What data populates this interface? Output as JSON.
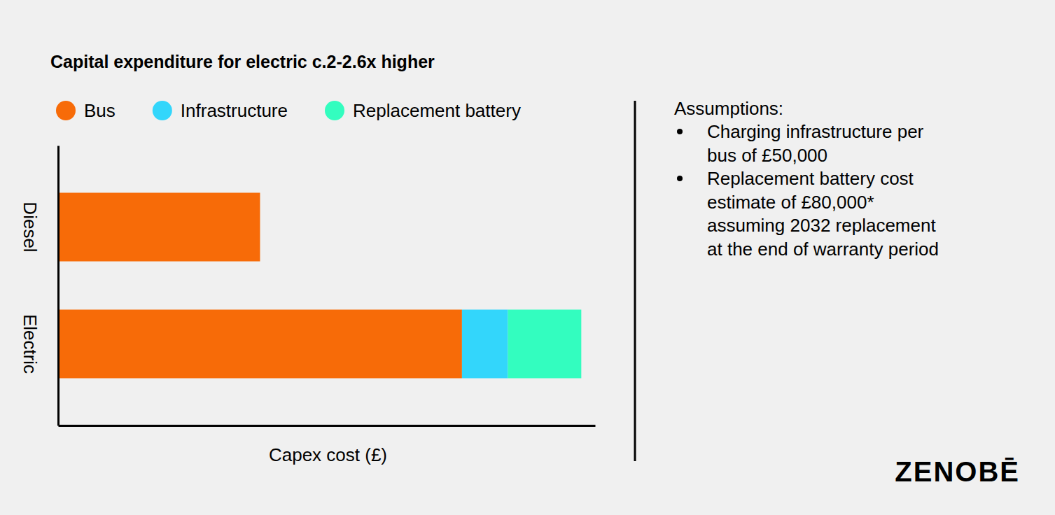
{
  "chart_data": {
    "type": "bar",
    "orientation": "horizontal",
    "stacked": true,
    "title": "Capital expenditure for electric c.2-2.6x higher",
    "x_label": "Capex cost (£)",
    "categories": [
      "Diesel",
      "Electric"
    ],
    "series": [
      {
        "name": "Bus",
        "color": "#f76b08",
        "values": [
          220000,
          440000
        ]
      },
      {
        "name": "Infrastructure",
        "color": "#33d6fb",
        "values": [
          0,
          50000
        ]
      },
      {
        "name": "Replacement battery",
        "color": "#33fdbf",
        "values": [
          0,
          80000
        ]
      }
    ],
    "xlim": [
      0,
      585000
    ],
    "xticks": [],
    "tick_labels": "y",
    "legend": "top",
    "annotations": {
      "heading": "Assumptions:",
      "bullets": [
        [
          "Charging infrastructure per",
          "bus of £50,000"
        ],
        [
          "Replacement battery cost",
          "estimate of £80,000*",
          "assuming 2032 replacement",
          "at the end of warranty period"
        ]
      ]
    },
    "logo": "ZENOBĒ"
  }
}
